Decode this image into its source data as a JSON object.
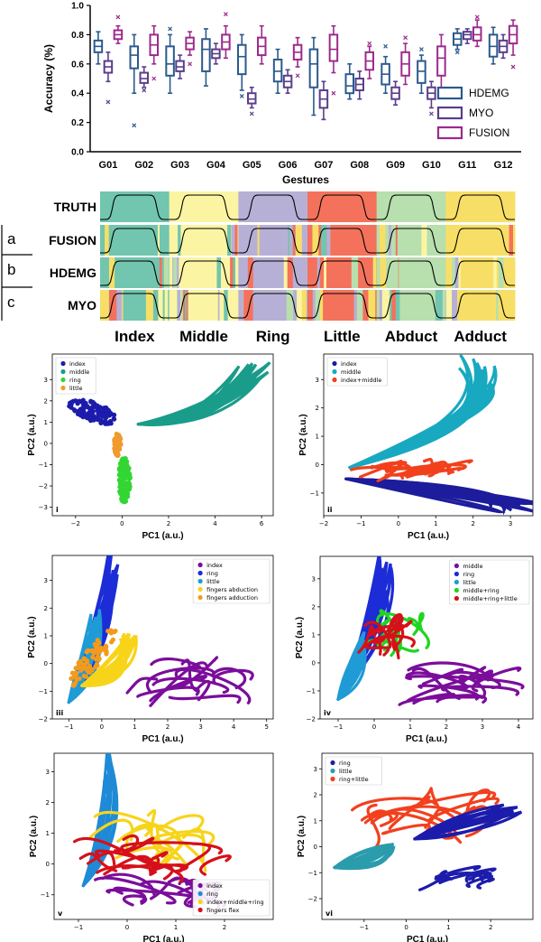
{
  "chart_data": [
    {
      "type": "box",
      "xlabel": "Gestures",
      "ylabel": "Accuracy (%)",
      "ylim": [
        0,
        1.0
      ],
      "yticks": [
        "0.0",
        "0.2",
        "0.4",
        "0.6",
        "0.8",
        "1.0"
      ],
      "legend_position": "right",
      "categories": [
        "G01",
        "G02",
        "G03",
        "G04",
        "G05",
        "G06",
        "G07",
        "G08",
        "G09",
        "G10",
        "G11",
        "G12"
      ],
      "series": [
        {
          "name": "HDEMG",
          "color": "#2a5a8c",
          "boxes": [
            {
              "min": 0.6,
              "q1": 0.68,
              "median": 0.72,
              "q3": 0.76,
              "max": 0.82,
              "outliers": []
            },
            {
              "min": 0.4,
              "q1": 0.57,
              "median": 0.66,
              "q3": 0.72,
              "max": 0.8,
              "outliers": [
                0.18
              ]
            },
            {
              "min": 0.4,
              "q1": 0.52,
              "median": 0.6,
              "q3": 0.72,
              "max": 0.8,
              "outliers": [
                0.84
              ]
            },
            {
              "min": 0.45,
              "q1": 0.55,
              "median": 0.7,
              "q3": 0.77,
              "max": 0.84,
              "outliers": []
            },
            {
              "min": 0.42,
              "q1": 0.53,
              "median": 0.65,
              "q3": 0.73,
              "max": 0.8,
              "outliers": [
                0.38
              ]
            },
            {
              "min": 0.4,
              "q1": 0.48,
              "median": 0.55,
              "q3": 0.63,
              "max": 0.7,
              "outliers": []
            },
            {
              "min": 0.25,
              "q1": 0.44,
              "median": 0.6,
              "q3": 0.7,
              "max": 0.78,
              "outliers": []
            },
            {
              "min": 0.36,
              "q1": 0.4,
              "median": 0.45,
              "q3": 0.53,
              "max": 0.6,
              "outliers": []
            },
            {
              "min": 0.4,
              "q1": 0.46,
              "median": 0.53,
              "q3": 0.6,
              "max": 0.65,
              "outliers": [
                0.72
              ]
            },
            {
              "min": 0.4,
              "q1": 0.47,
              "median": 0.55,
              "q3": 0.62,
              "max": 0.66,
              "outliers": [
                0.7
              ]
            },
            {
              "min": 0.7,
              "q1": 0.73,
              "median": 0.77,
              "q3": 0.81,
              "max": 0.84,
              "outliers": [
                0.68
              ]
            },
            {
              "min": 0.6,
              "q1": 0.65,
              "median": 0.72,
              "q3": 0.8,
              "max": 0.85,
              "outliers": []
            }
          ]
        },
        {
          "name": "MYO",
          "color": "#5a3d8c",
          "boxes": [
            {
              "min": 0.48,
              "q1": 0.54,
              "median": 0.58,
              "q3": 0.62,
              "max": 0.68,
              "outliers": [
                0.34
              ]
            },
            {
              "min": 0.44,
              "q1": 0.47,
              "median": 0.5,
              "q3": 0.54,
              "max": 0.58,
              "outliers": [
                0.42
              ]
            },
            {
              "min": 0.5,
              "q1": 0.55,
              "median": 0.58,
              "q3": 0.62,
              "max": 0.66,
              "outliers": []
            },
            {
              "min": 0.6,
              "q1": 0.64,
              "median": 0.67,
              "q3": 0.7,
              "max": 0.74,
              "outliers": []
            },
            {
              "min": 0.3,
              "q1": 0.33,
              "median": 0.36,
              "q3": 0.4,
              "max": 0.44,
              "outliers": [
                0.26
              ]
            },
            {
              "min": 0.4,
              "q1": 0.44,
              "median": 0.48,
              "q3": 0.52,
              "max": 0.56,
              "outliers": []
            },
            {
              "min": 0.22,
              "q1": 0.3,
              "median": 0.36,
              "q3": 0.42,
              "max": 0.48,
              "outliers": []
            },
            {
              "min": 0.36,
              "q1": 0.42,
              "median": 0.46,
              "q3": 0.5,
              "max": 0.55,
              "outliers": []
            },
            {
              "min": 0.32,
              "q1": 0.36,
              "median": 0.4,
              "q3": 0.44,
              "max": 0.48,
              "outliers": []
            },
            {
              "min": 0.3,
              "q1": 0.36,
              "median": 0.4,
              "q3": 0.44,
              "max": 0.48,
              "outliers": [
                0.26
              ]
            },
            {
              "min": 0.74,
              "q1": 0.77,
              "median": 0.8,
              "q3": 0.82,
              "max": 0.84,
              "outliers": []
            },
            {
              "min": 0.64,
              "q1": 0.68,
              "median": 0.72,
              "q3": 0.76,
              "max": 0.8,
              "outliers": []
            }
          ]
        },
        {
          "name": "FUSION",
          "color": "#9c2a8c",
          "boxes": [
            {
              "min": 0.74,
              "q1": 0.77,
              "median": 0.8,
              "q3": 0.83,
              "max": 0.86,
              "outliers": [
                0.92
              ]
            },
            {
              "min": 0.6,
              "q1": 0.66,
              "median": 0.73,
              "q3": 0.8,
              "max": 0.86,
              "outliers": [
                0.5
              ]
            },
            {
              "min": 0.66,
              "q1": 0.7,
              "median": 0.74,
              "q3": 0.78,
              "max": 0.82,
              "outliers": [
                0.6
              ]
            },
            {
              "min": 0.64,
              "q1": 0.7,
              "median": 0.75,
              "q3": 0.8,
              "max": 0.86,
              "outliers": [
                0.94
              ]
            },
            {
              "min": 0.6,
              "q1": 0.66,
              "median": 0.72,
              "q3": 0.78,
              "max": 0.86,
              "outliers": []
            },
            {
              "min": 0.58,
              "q1": 0.63,
              "median": 0.68,
              "q3": 0.73,
              "max": 0.78,
              "outliers": [
                0.52
              ]
            },
            {
              "min": 0.54,
              "q1": 0.62,
              "median": 0.7,
              "q3": 0.8,
              "max": 0.86,
              "outliers": [
                0.4
              ]
            },
            {
              "min": 0.5,
              "q1": 0.56,
              "median": 0.62,
              "q3": 0.68,
              "max": 0.72,
              "outliers": [
                0.74
              ]
            },
            {
              "min": 0.46,
              "q1": 0.52,
              "median": 0.6,
              "q3": 0.68,
              "max": 0.74,
              "outliers": [
                0.78
              ]
            },
            {
              "min": 0.42,
              "q1": 0.52,
              "median": 0.64,
              "q3": 0.72,
              "max": 0.8,
              "outliers": [
                0.38
              ]
            },
            {
              "min": 0.72,
              "q1": 0.76,
              "median": 0.8,
              "q3": 0.85,
              "max": 0.9,
              "outliers": [
                0.92
              ]
            },
            {
              "min": 0.66,
              "q1": 0.74,
              "median": 0.8,
              "q3": 0.86,
              "max": 0.9,
              "outliers": [
                0.58
              ]
            }
          ]
        }
      ]
    },
    {
      "type": "heatmap",
      "rows": [
        "TRUTH",
        "FUSION",
        "HDEMG",
        "MYO"
      ],
      "categories": [
        "Index",
        "Middle",
        "Ring",
        "Little",
        "Abduct",
        "Adduct"
      ],
      "category_colors": [
        "#72c5ae",
        "#fbf5a3",
        "#b7b0d6",
        "#f4725c",
        "#b8dfae",
        "#f7df67"
      ],
      "side_labels": [
        "a",
        "b",
        "c"
      ]
    },
    {
      "type": "scatter",
      "tag": "i",
      "xlabel": "PC1 (a.u.)",
      "ylabel": "PC2 (a.u.)",
      "xlim": [
        -3,
        6.5
      ],
      "ylim": [
        -3.4,
        4.2
      ],
      "xticks": [
        -2,
        0,
        2,
        4,
        6
      ],
      "yticks": [
        -3,
        -2,
        -1,
        0,
        1,
        2,
        3
      ],
      "legend_position": "top-left",
      "series": [
        {
          "name": "index",
          "color": "#1c1cac"
        },
        {
          "name": "middle",
          "color": "#1a9c8a"
        },
        {
          "name": "ring",
          "color": "#33d633"
        },
        {
          "name": "little",
          "color": "#f19a2e"
        }
      ]
    },
    {
      "type": "scatter",
      "tag": "ii",
      "xlabel": "PC1 (a.u.)",
      "ylabel": "PC2 (a.u.)",
      "xlim": [
        -2,
        3.6
      ],
      "ylim": [
        -1.8,
        3.9
      ],
      "xticks": [
        -2,
        -1,
        0,
        1,
        2,
        3
      ],
      "yticks": [
        -1,
        0,
        1,
        2,
        3
      ],
      "legend_position": "top-left",
      "series": [
        {
          "name": "index",
          "color": "#1c1c9c"
        },
        {
          "name": "middle",
          "color": "#18a9c1"
        },
        {
          "name": "index+middle",
          "color": "#f2401d"
        }
      ]
    },
    {
      "type": "scatter",
      "tag": "iii",
      "xlabel": "PC1 (a.u.)",
      "ylabel": "PC2 (a.u.)",
      "xlim": [
        -1.5,
        5.2
      ],
      "ylim": [
        -2,
        3.9
      ],
      "xticks": [
        -1,
        0,
        1,
        2,
        3,
        4,
        5
      ],
      "yticks": [
        -2,
        -1,
        0,
        1,
        2,
        3
      ],
      "legend_position": "top-right",
      "series": [
        {
          "name": "index",
          "color": "#7b0d9b"
        },
        {
          "name": "ring",
          "color": "#1c2cd6"
        },
        {
          "name": "little",
          "color": "#1f9bd6"
        },
        {
          "name": "fingers abduction",
          "color": "#f7d41a"
        },
        {
          "name": "fingers adduction",
          "color": "#f49a1a"
        }
      ]
    },
    {
      "type": "scatter",
      "tag": "iv",
      "xlabel": "PC1 (a.u.)",
      "ylabel": "PC2 (a.u.)",
      "xlim": [
        -1.5,
        4.4
      ],
      "ylim": [
        -2,
        3.8
      ],
      "xticks": [
        -1,
        0,
        1,
        2,
        3,
        4
      ],
      "yticks": [
        -2,
        -1,
        0,
        1,
        2,
        3
      ],
      "legend_position": "top-right",
      "series": [
        {
          "name": "middle",
          "color": "#7b0d9b"
        },
        {
          "name": "ring",
          "color": "#1c2cd6"
        },
        {
          "name": "little",
          "color": "#1f9bd6"
        },
        {
          "name": "middle+ring",
          "color": "#1ed61e"
        },
        {
          "name": "middle+ring+little",
          "color": "#d6101a"
        }
      ]
    },
    {
      "type": "scatter",
      "tag": "v",
      "xlabel": "PC1 (a.u.)",
      "ylabel": "PC2 (a.u.)",
      "xlim": [
        -1.5,
        3.0
      ],
      "ylim": [
        -1.8,
        3.6
      ],
      "xticks": [
        -1,
        0,
        1,
        2
      ],
      "yticks": [
        -1,
        0,
        1,
        2,
        3
      ],
      "legend_position": "bottom-right",
      "series": [
        {
          "name": "index",
          "color": "#7b0d9b"
        },
        {
          "name": "ring",
          "color": "#1f8ad6"
        },
        {
          "name": "index+middle+ring",
          "color": "#f7d41a"
        },
        {
          "name": "fingers flex",
          "color": "#d6101a"
        }
      ]
    },
    {
      "type": "scatter",
      "tag": "vi",
      "xlabel": "PC1 (a.u.)",
      "ylabel": "PC2 (a.u.)",
      "xlim": [
        -2,
        3.0
      ],
      "ylim": [
        -2.8,
        3.6
      ],
      "xticks": [
        -1,
        0,
        1,
        2
      ],
      "yticks": [
        -2,
        -1,
        0,
        1,
        2,
        3
      ],
      "legend_position": "top-left",
      "series": [
        {
          "name": "ring",
          "color": "#1c1cac"
        },
        {
          "name": "little",
          "color": "#2a9cac"
        },
        {
          "name": "ring+little",
          "color": "#f2401d"
        }
      ]
    }
  ]
}
